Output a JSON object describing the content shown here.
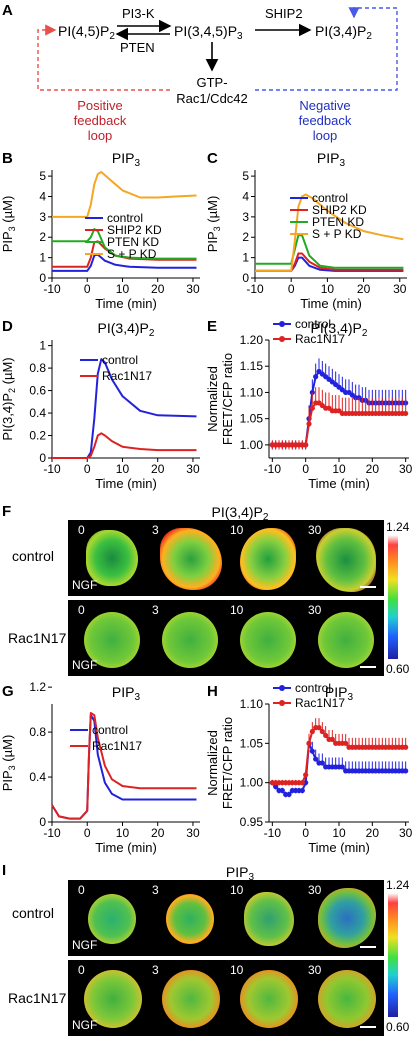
{
  "panels": {
    "A": "A",
    "B": "B",
    "C": "C",
    "D": "D",
    "E": "E",
    "F": "F",
    "G": "G",
    "H": "H",
    "I": "I"
  },
  "diagram": {
    "node_pi45": "PI(4,5)P",
    "node_pi45_sub": "2",
    "node_pip3": "PI(3,4,5)P",
    "node_pip3_sub": "3",
    "node_pi34": "PI(3,4)P",
    "node_pi34_sub": "2",
    "enzyme_pi3k": "PI3-K",
    "enzyme_pten": "PTEN",
    "enzyme_ship2": "SHIP2",
    "node_gtp_line1": "GTP-",
    "node_gtp_line2": "Rac1/Cdc42",
    "positive_line1": "Positive",
    "positive_line2": "feedback",
    "positive_line3": "loop",
    "negative_line1": "Negative",
    "negative_line2": "feedback",
    "negative_line3": "loop",
    "colors": {
      "positive": "#e8504a",
      "negative": "#4a5ae8",
      "positive_text": "#c0202a",
      "negative_text": "#2030c0"
    }
  },
  "chart_data": [
    {
      "id": "B",
      "type": "line",
      "title": "PIP",
      "title_sub": "3",
      "xlabel": "Time (min)",
      "ylabel": "PIP",
      "ylabel_sub": "3",
      "ylabel_unit": " (µM)",
      "xlim": [
        -10,
        32
      ],
      "ylim": [
        0,
        5.3
      ],
      "xticks": [
        -10,
        0,
        10,
        20,
        30
      ],
      "yticks": [
        0,
        1,
        2,
        3,
        4,
        5
      ],
      "legend": [
        "control",
        "SHIP2 KD",
        "PTEN KD",
        "S + P KD"
      ],
      "series": [
        {
          "name": "control",
          "color": "#2222dd",
          "x": [
            -10,
            0,
            1,
            2,
            3,
            5,
            8,
            12,
            20,
            31
          ],
          "y": [
            0.35,
            0.35,
            0.6,
            1.1,
            1.15,
            0.85,
            0.65,
            0.55,
            0.5,
            0.5
          ]
        },
        {
          "name": "SHIP2 KD",
          "color": "#dd2222",
          "x": [
            -10,
            0,
            1,
            2,
            3,
            5,
            8,
            12,
            20,
            31
          ],
          "y": [
            0.55,
            0.55,
            1.0,
            1.75,
            1.8,
            1.45,
            1.1,
            0.95,
            0.9,
            0.9
          ]
        },
        {
          "name": "PTEN KD",
          "color": "#22aa22",
          "x": [
            -10,
            0,
            1,
            2,
            3,
            5,
            8,
            12,
            20,
            31
          ],
          "y": [
            1.8,
            1.8,
            2.0,
            2.4,
            2.3,
            1.5,
            1.1,
            1.0,
            0.95,
            0.95
          ]
        },
        {
          "name": "S + P KD",
          "color": "#f5a623",
          "x": [
            -10,
            0,
            1,
            2,
            3,
            4,
            6,
            10,
            15,
            20,
            25,
            31
          ],
          "y": [
            3.0,
            3.0,
            3.6,
            4.6,
            5.1,
            5.2,
            4.9,
            4.3,
            3.95,
            3.95,
            4.0,
            4.05
          ]
        }
      ]
    },
    {
      "id": "C",
      "type": "line",
      "title": "PIP",
      "title_sub": "3",
      "xlabel": "Time (min)",
      "ylabel": "PIP",
      "ylabel_sub": "3",
      "ylabel_unit": " (µM)",
      "xlim": [
        -10,
        32
      ],
      "ylim": [
        0,
        5.3
      ],
      "xticks": [
        -10,
        0,
        10,
        20,
        30
      ],
      "yticks": [
        0,
        1,
        2,
        3,
        4,
        5
      ],
      "legend": [
        "control",
        "SHIP2 KD",
        "PTEN KD",
        "S + P KD"
      ],
      "series": [
        {
          "name": "control",
          "color": "#2222dd",
          "x": [
            -10,
            0,
            1,
            2,
            3,
            5,
            8,
            12,
            20,
            31
          ],
          "y": [
            0.35,
            0.35,
            0.6,
            1.0,
            1.0,
            0.6,
            0.4,
            0.35,
            0.35,
            0.35
          ]
        },
        {
          "name": "SHIP2 KD",
          "color": "#dd2222",
          "x": [
            -10,
            0,
            1,
            2,
            3,
            5,
            8,
            12,
            20,
            31
          ],
          "y": [
            0.35,
            0.35,
            0.7,
            1.2,
            1.2,
            0.8,
            0.5,
            0.4,
            0.4,
            0.4
          ]
        },
        {
          "name": "PTEN KD",
          "color": "#22aa22",
          "x": [
            -10,
            0,
            1,
            2,
            3,
            5,
            8,
            12,
            20,
            31
          ],
          "y": [
            0.7,
            0.7,
            1.4,
            2.1,
            2.1,
            1.1,
            0.6,
            0.5,
            0.5,
            0.5
          ]
        },
        {
          "name": "S + P KD",
          "color": "#f5a623",
          "x": [
            -10,
            0,
            1,
            2,
            3,
            4,
            6,
            10,
            15,
            20,
            25,
            31
          ],
          "y": [
            0.35,
            0.35,
            1.8,
            3.5,
            4.0,
            4.1,
            3.9,
            3.3,
            2.7,
            2.3,
            2.1,
            1.9
          ]
        }
      ]
    },
    {
      "id": "D",
      "type": "line",
      "title": "PI(3,4)P",
      "title_sub": "2",
      "xlabel": "Time (min)",
      "ylabel": "PI(3,4)P",
      "ylabel_sub": "2",
      "ylabel_unit": " (µM)",
      "xlim": [
        -10,
        32
      ],
      "ylim": [
        0,
        1.05
      ],
      "xticks": [
        -10,
        0,
        10,
        20,
        30
      ],
      "yticks": [
        0,
        0.2,
        0.4,
        0.6,
        0.8,
        1
      ],
      "ytick_labels": [
        "0",
        "0.2",
        "0.4",
        "0.6",
        "0.8",
        "1"
      ],
      "legend": [
        "control",
        "Rac1N17"
      ],
      "series": [
        {
          "name": "control",
          "color": "#2222dd",
          "x": [
            -10,
            0,
            1,
            2,
            3,
            4,
            5,
            7,
            10,
            15,
            20,
            31
          ],
          "y": [
            0.0,
            0.0,
            0.05,
            0.35,
            0.75,
            0.88,
            0.85,
            0.7,
            0.55,
            0.42,
            0.38,
            0.37
          ]
        },
        {
          "name": "Rac1N17",
          "color": "#dd2222",
          "x": [
            -10,
            0,
            1,
            2,
            3,
            4,
            5,
            7,
            10,
            15,
            20,
            31
          ],
          "y": [
            0.0,
            0.0,
            0.02,
            0.1,
            0.2,
            0.22,
            0.2,
            0.15,
            0.1,
            0.08,
            0.07,
            0.07
          ]
        }
      ]
    },
    {
      "id": "E",
      "type": "line",
      "title": "PI(3,4)P",
      "title_sub": "2",
      "xlabel": "Time (min)",
      "ylabel_line1": "Normalized",
      "ylabel_line2": "FRET/CFP ratio",
      "xlim": [
        -11,
        31
      ],
      "ylim": [
        0.975,
        1.2
      ],
      "xticks": [
        -10,
        0,
        10,
        20,
        30
      ],
      "yticks": [
        1.0,
        1.05,
        1.1,
        1.15,
        1.2
      ],
      "ytick_labels": [
        "1.00",
        "1.05",
        "1.10",
        "1.15",
        "1.20"
      ],
      "legend": [
        "control",
        "Rac1N17"
      ],
      "series": [
        {
          "name": "control",
          "color": "#2222dd",
          "markers": true,
          "err": 0.025,
          "x": [
            -10,
            -9,
            -8,
            -7,
            -6,
            -5,
            -4,
            -3,
            -2,
            -1,
            0,
            1,
            2,
            3,
            4,
            5,
            6,
            7,
            8,
            9,
            10,
            11,
            12,
            13,
            14,
            15,
            16,
            17,
            18,
            19,
            20,
            21,
            22,
            23,
            24,
            25,
            26,
            27,
            28,
            29,
            30
          ],
          "y": [
            1.0,
            1.0,
            1.0,
            1.0,
            1.0,
            1.0,
            1.0,
            1.0,
            1.0,
            1.0,
            1.0,
            1.05,
            1.1,
            1.13,
            1.14,
            1.135,
            1.13,
            1.125,
            1.12,
            1.115,
            1.11,
            1.105,
            1.1,
            1.1,
            1.095,
            1.09,
            1.09,
            1.085,
            1.085,
            1.08,
            1.08,
            1.08,
            1.08,
            1.08,
            1.08,
            1.08,
            1.08,
            1.08,
            1.08,
            1.08,
            1.08
          ]
        },
        {
          "name": "Rac1N17",
          "color": "#dd2222",
          "markers": true,
          "err": 0.03,
          "x": [
            -10,
            -9,
            -8,
            -7,
            -6,
            -5,
            -4,
            -3,
            -2,
            -1,
            0,
            1,
            2,
            3,
            4,
            5,
            6,
            7,
            8,
            9,
            10,
            11,
            12,
            13,
            14,
            15,
            16,
            17,
            18,
            19,
            20,
            21,
            22,
            23,
            24,
            25,
            26,
            27,
            28,
            29,
            30
          ],
          "y": [
            1.0,
            1.0,
            1.0,
            1.0,
            1.0,
            1.0,
            1.0,
            1.0,
            1.0,
            1.0,
            1.0,
            1.04,
            1.07,
            1.08,
            1.08,
            1.075,
            1.07,
            1.07,
            1.065,
            1.065,
            1.065,
            1.06,
            1.06,
            1.06,
            1.06,
            1.06,
            1.06,
            1.06,
            1.06,
            1.06,
            1.06,
            1.06,
            1.06,
            1.06,
            1.06,
            1.06,
            1.06,
            1.06,
            1.06,
            1.06,
            1.06
          ]
        }
      ]
    },
    {
      "id": "G",
      "type": "line",
      "title": "PIP",
      "title_sub": "3",
      "xlabel": "Time (min)",
      "ylabel": "PIP",
      "ylabel_sub": "3",
      "ylabel_unit": " (µM)",
      "xlim": [
        -10,
        32
      ],
      "ylim": [
        0,
        1.05
      ],
      "xticks": [
        -10,
        0,
        10,
        20,
        30
      ],
      "yticks": [
        0,
        0.4,
        0.8,
        1.2
      ],
      "ytick_labels": [
        "0",
        "0.4",
        "0.8",
        "1.2"
      ],
      "legend": [
        "control",
        "Rac1N17"
      ],
      "series": [
        {
          "name": "control",
          "color": "#2222dd",
          "x": [
            -10,
            -8,
            -5,
            -2,
            0,
            0.5,
            1,
            2,
            3,
            5,
            7,
            10,
            15,
            20,
            31
          ],
          "y": [
            0.15,
            0.05,
            0.03,
            0.03,
            0.1,
            0.6,
            0.95,
            0.9,
            0.6,
            0.35,
            0.25,
            0.2,
            0.2,
            0.2,
            0.2
          ]
        },
        {
          "name": "Rac1N17",
          "color": "#dd2222",
          "x": [
            -10,
            -8,
            -5,
            -2,
            0,
            0.5,
            1,
            2,
            3,
            5,
            7,
            10,
            15,
            20,
            31
          ],
          "y": [
            0.15,
            0.05,
            0.03,
            0.03,
            0.1,
            0.6,
            0.97,
            0.95,
            0.75,
            0.5,
            0.38,
            0.32,
            0.3,
            0.3,
            0.3
          ]
        }
      ]
    },
    {
      "id": "H",
      "type": "line",
      "title": "PIP",
      "title_sub": "3",
      "xlabel": "Time (min)",
      "ylabel_line1": "Normalized",
      "ylabel_line2": "FRET/CFP ratio",
      "xlim": [
        -11,
        31
      ],
      "ylim": [
        0.95,
        1.1
      ],
      "xticks": [
        -10,
        0,
        10,
        20,
        30
      ],
      "yticks": [
        0.95,
        1.0,
        1.05,
        1.1
      ],
      "ytick_labels": [
        "0.95",
        "1.00",
        "1.05",
        "1.10"
      ],
      "legend": [
        "control",
        "Rac1N17"
      ],
      "series": [
        {
          "name": "control",
          "color": "#2222dd",
          "markers": true,
          "err": 0.012,
          "x": [
            -10,
            -9,
            -8,
            -7,
            -6,
            -5,
            -4,
            -3,
            -2,
            -1,
            0,
            1,
            2,
            3,
            4,
            5,
            6,
            7,
            8,
            9,
            10,
            11,
            12,
            13,
            14,
            15,
            16,
            17,
            18,
            19,
            20,
            21,
            22,
            23,
            24,
            25,
            26,
            27,
            28,
            29,
            30
          ],
          "y": [
            1.0,
            0.995,
            0.99,
            0.99,
            0.985,
            0.985,
            0.99,
            0.99,
            0.99,
            0.99,
            1.0,
            1.05,
            1.04,
            1.03,
            1.025,
            1.025,
            1.02,
            1.02,
            1.02,
            1.02,
            1.02,
            1.02,
            1.015,
            1.015,
            1.015,
            1.015,
            1.015,
            1.015,
            1.015,
            1.015,
            1.015,
            1.015,
            1.015,
            1.015,
            1.015,
            1.015,
            1.015,
            1.015,
            1.015,
            1.015,
            1.015
          ]
        },
        {
          "name": "Rac1N17",
          "color": "#dd2222",
          "markers": true,
          "err": 0.012,
          "x": [
            -10,
            -9,
            -8,
            -7,
            -6,
            -5,
            -4,
            -3,
            -2,
            -1,
            0,
            1,
            2,
            3,
            4,
            5,
            6,
            7,
            8,
            9,
            10,
            11,
            12,
            13,
            14,
            15,
            16,
            17,
            18,
            19,
            20,
            21,
            22,
            23,
            24,
            25,
            26,
            27,
            28,
            29,
            30
          ],
          "y": [
            1.0,
            1.0,
            1.0,
            1.0,
            1.0,
            1.0,
            1.0,
            1.0,
            1.0,
            1.0,
            1.01,
            1.05,
            1.065,
            1.07,
            1.07,
            1.065,
            1.06,
            1.055,
            1.055,
            1.05,
            1.05,
            1.05,
            1.05,
            1.045,
            1.045,
            1.045,
            1.045,
            1.045,
            1.045,
            1.045,
            1.045,
            1.045,
            1.045,
            1.045,
            1.045,
            1.045,
            1.045,
            1.045,
            1.045,
            1.045,
            1.045
          ]
        }
      ]
    }
  ],
  "imaging": {
    "F": {
      "title": "PI(3,4)P",
      "title_sub": "2",
      "row1_label": "control",
      "row2_label": "Rac1N17",
      "times": [
        "0",
        "3",
        "10",
        "30"
      ],
      "stim": "NGF",
      "scale_max": "1.24",
      "scale_min": "0.60"
    },
    "I": {
      "title": "PIP",
      "title_sub": "3",
      "row1_label": "control",
      "row2_label": "Rac1N17",
      "times": [
        "0",
        "3",
        "10",
        "30"
      ],
      "stim": "NGF",
      "scale_max": "1.24",
      "scale_min": "0.60"
    }
  }
}
